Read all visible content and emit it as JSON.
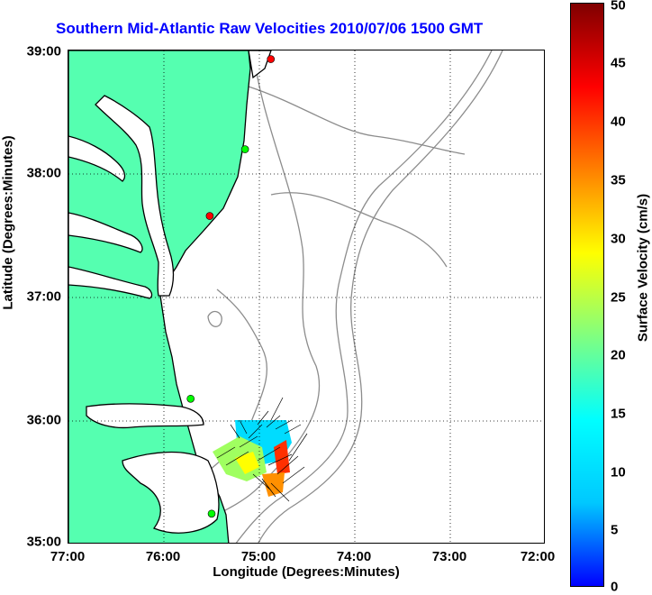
{
  "title": "Southern Mid-Atlantic Raw Velocities 2010/07/06 1500 GMT",
  "x_axis": {
    "label": "Longitude (Degrees:Minutes)",
    "ticks": [
      "77:00",
      "76:00",
      "75:00",
      "74:00",
      "73:00",
      "72:00"
    ],
    "range": [
      -77,
      -72
    ]
  },
  "y_axis": {
    "label": "Latitude (Degrees:Minutes)",
    "ticks": [
      "39:00",
      "38:00",
      "37:00",
      "36:00",
      "35:00"
    ],
    "range": [
      35,
      39
    ]
  },
  "colorbar": {
    "label": "Surface Velocity (cm/s)",
    "ticks": [
      "50",
      "45",
      "40",
      "35",
      "30",
      "25",
      "20",
      "15",
      "10",
      "5",
      "0"
    ],
    "range": [
      0,
      50
    ],
    "colors": [
      "#0000ff",
      "#00c8ff",
      "#00ffff",
      "#80ff80",
      "#ffff00",
      "#ff8000",
      "#ff0000",
      "#800000"
    ]
  },
  "colors": {
    "land": "#55ffb0",
    "coastline": "#000000",
    "bathymetry": "#8c8c8c",
    "grid": "#000000",
    "title": "#0000ff"
  },
  "stations": [
    {
      "lat": 38.93,
      "lon": -74.88,
      "color": "#ff0000"
    },
    {
      "lat": 38.2,
      "lon": -75.15,
      "color": "#00ff00"
    },
    {
      "lat": 37.66,
      "lon": -75.52,
      "color": "#ff0000"
    },
    {
      "lat": 36.18,
      "lon": -75.72,
      "color": "#00ff00"
    },
    {
      "lat": 35.25,
      "lon": -75.5,
      "color": "#00ff00"
    }
  ]
}
